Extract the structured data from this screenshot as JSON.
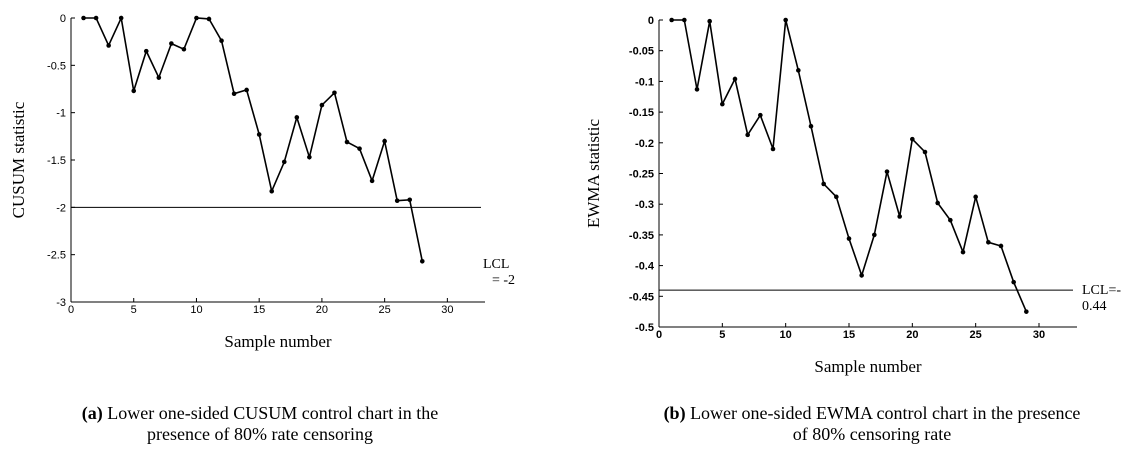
{
  "chart_data": [
    {
      "type": "line",
      "ylabel": "CUSUM statistic",
      "xlabel": "Sample number",
      "xlim": [
        0,
        33
      ],
      "ylim": [
        -3,
        0
      ],
      "xticks": [
        "0",
        "5",
        "10",
        "15",
        "20",
        "25",
        "30"
      ],
      "yticks": [
        "0",
        "-0.5",
        "-1",
        "-1.5",
        "-2",
        "-2.5",
        "-3"
      ],
      "x": [
        1,
        2,
        3,
        4,
        5,
        6,
        7,
        8,
        9,
        10,
        11,
        12,
        13,
        14,
        15,
        16,
        17,
        18,
        19,
        20,
        21,
        22,
        23,
        24,
        25,
        26,
        27,
        28
      ],
      "values": [
        0,
        0,
        -0.29,
        0,
        -0.77,
        -0.35,
        -0.63,
        -0.27,
        -0.33,
        0,
        -0.01,
        -0.24,
        -0.8,
        -0.76,
        -1.23,
        -1.83,
        -1.52,
        -1.05,
        -1.47,
        -0.92,
        -0.79,
        -1.31,
        -1.38,
        -1.72,
        -1.3,
        -1.93,
        -1.92,
        -2.57
      ],
      "lcl": -2,
      "lcl_label_1": "LCL",
      "lcl_label_2": "= -2",
      "caption_letter": "(a)",
      "caption_line1": "Lower one-sided CUSUM control chart in the",
      "caption_line2": "presence of 80% rate censoring"
    },
    {
      "type": "line",
      "ylabel": "EWMA statistic",
      "xlabel": "Sample number",
      "xlim": [
        0,
        33
      ],
      "ylim": [
        -0.5,
        0
      ],
      "xticks": [
        "0",
        "5",
        "10",
        "15",
        "20",
        "25",
        "30"
      ],
      "yticks": [
        "0",
        "-0.05",
        "-0.1",
        "-0.15",
        "-0.2",
        "-0.25",
        "-0.3",
        "-0.35",
        "-0.4",
        "-0.45",
        "-0.5"
      ],
      "x": [
        1,
        2,
        3,
        4,
        5,
        6,
        7,
        8,
        9,
        10,
        11,
        12,
        13,
        14,
        15,
        16,
        17,
        18,
        19,
        20,
        21,
        22,
        23,
        24,
        25,
        26,
        27,
        28,
        29
      ],
      "values": [
        0,
        0,
        -0.113,
        -0.002,
        -0.137,
        -0.096,
        -0.187,
        -0.155,
        -0.21,
        0,
        -0.082,
        -0.173,
        -0.267,
        -0.288,
        -0.356,
        -0.416,
        -0.35,
        -0.247,
        -0.32,
        -0.194,
        -0.215,
        -0.298,
        -0.326,
        -0.378,
        -0.288,
        -0.362,
        -0.368,
        -0.427,
        -0.475
      ],
      "lcl": -0.44,
      "lcl_label_1": "LCL=-",
      "lcl_label_2": "0.44",
      "caption_letter": "(b)",
      "caption_line1": "Lower one-sided EWMA control chart in the presence",
      "caption_line2": "of 80% censoring rate"
    }
  ]
}
